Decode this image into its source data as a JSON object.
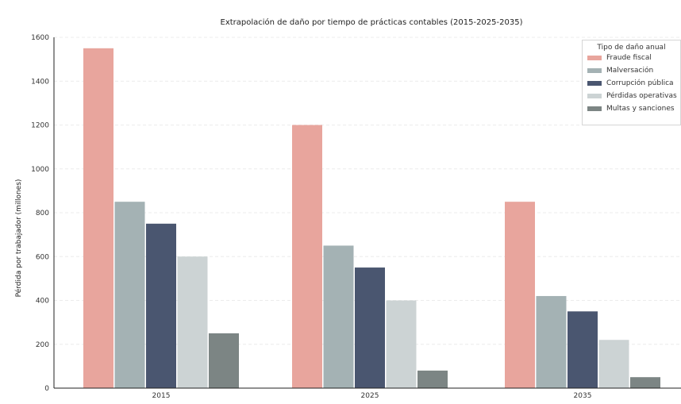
{
  "chart_data": {
    "type": "bar",
    "title": "Extrapolación de daño por tiempo de prácticas contables (2015-2025-2035)",
    "xlabel": "",
    "ylabel": "Pérdida por trabajador (millones)",
    "categories": [
      "2015",
      "2025",
      "2035"
    ],
    "ylim": [
      0,
      1600
    ],
    "yticks": [
      0,
      200,
      400,
      600,
      800,
      1000,
      1200,
      1400,
      1600
    ],
    "grid": true,
    "legend": {
      "title": "Tipo de daño anual",
      "placement": "top-right"
    },
    "series": [
      {
        "name": "Fraude fiscal",
        "color": "#e8a59d",
        "values": [
          1550,
          1200,
          850
        ]
      },
      {
        "name": "Malversación",
        "color": "#a4b2b4",
        "values": [
          850,
          650,
          420
        ]
      },
      {
        "name": "Corrupción pública",
        "color": "#4a5670",
        "values": [
          750,
          550,
          350
        ]
      },
      {
        "name": "Pérdidas operativas",
        "color": "#ccd3d4",
        "values": [
          600,
          400,
          220
        ]
      },
      {
        "name": "Multas y sanciones",
        "color": "#7c8584",
        "values": [
          250,
          80,
          50
        ]
      }
    ]
  }
}
